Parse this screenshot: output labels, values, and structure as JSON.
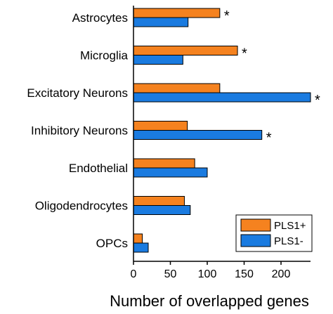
{
  "chart_data": {
    "type": "bar",
    "orientation": "horizontal",
    "categories": [
      "Astrocytes",
      "Microglia",
      "Excitatory Neurons",
      "Inhibitory Neurons",
      "Endothelial",
      "Oligodendrocytes",
      "OPCs"
    ],
    "series": [
      {
        "name": "PLS1+",
        "color": "#f5821f",
        "values": [
          117,
          141,
          117,
          73,
          83,
          69,
          12
        ]
      },
      {
        "name": "PLS1-",
        "color": "#1a7be0",
        "values": [
          74,
          67,
          240,
          174,
          100,
          77,
          20
        ]
      }
    ],
    "significance": [
      {
        "category": "Astrocytes",
        "series": "PLS1+",
        "mark": "*"
      },
      {
        "category": "Microglia",
        "series": "PLS1+",
        "mark": "*"
      },
      {
        "category": "Excitatory Neurons",
        "series": "PLS1-",
        "mark": "*"
      },
      {
        "category": "Inhibitory Neurons",
        "series": "PLS1-",
        "mark": "*"
      }
    ],
    "xlabel": "Number of overlapped genes",
    "ylabel": "",
    "xlim": [
      0,
      240
    ],
    "xticks": [
      0,
      50,
      100,
      150,
      200
    ],
    "grid": false,
    "legend_position": "bottom-right"
  }
}
